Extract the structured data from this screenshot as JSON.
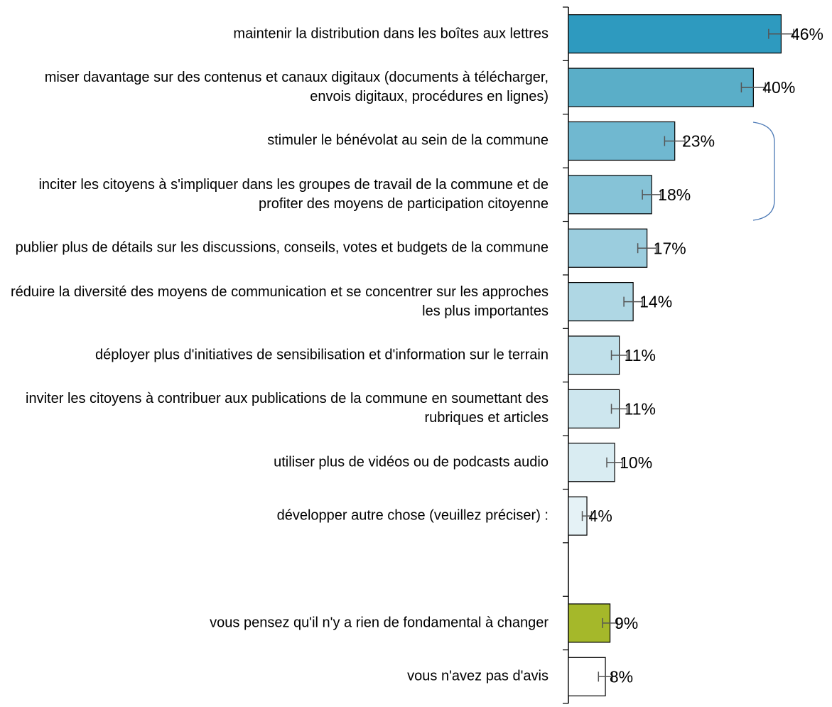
{
  "chart_data": {
    "type": "hbar",
    "categories": [
      "maintenir la distribution dans les boîtes aux lettres",
      "miser davantage sur des contenus et canaux digitaux (documents à télécharger, envois digitaux, procédures en lignes)",
      "stimuler le bénévolat au sein de la commune",
      "inciter les citoyens à s'impliquer dans les groupes de travail de la commune et de profiter des moyens de participation citoyenne",
      "publier plus de détails sur les discussions, conseils, votes et budgets de la commune",
      "réduire la diversité des moyens de communication et se concentrer sur les approches les plus importantes",
      "déployer plus d'initiatives de sensibilisation et d'information sur le terrain",
      "inviter les citoyens à contribuer aux publications de la commune en soumettant des rubriques et articles",
      "utiliser plus de vidéos ou de podcasts audio",
      "développer autre chose (veuillez préciser) :",
      null,
      "vous pensez qu'il n'y a rien de fondamental à changer",
      "vous n'avez pas d'avis"
    ],
    "values": [
      46,
      40,
      23,
      18,
      17,
      14,
      11,
      11,
      10,
      4,
      null,
      9,
      8
    ],
    "value_labels": [
      "46%",
      "40%",
      "23%",
      "18%",
      "17%",
      "14%",
      "11%",
      "11%",
      "10%",
      "4%",
      null,
      "9%",
      "8%"
    ],
    "errors": [
      2.7,
      2.6,
      2.2,
      2,
      2,
      2,
      1.7,
      1.7,
      1.7,
      1,
      null,
      1.6,
      1.5
    ],
    "colors": [
      "#2e9abf",
      "#5aaec8",
      "#70b8d0",
      "#86c3d7",
      "#9bcdde",
      "#afd7e4",
      "#c0e0ea",
      "#cde6ee",
      "#d9ecf2",
      "#e5f2f6",
      null,
      "#a5b82a",
      "#ffffff"
    ],
    "xlim": [
      0,
      57
    ]
  }
}
